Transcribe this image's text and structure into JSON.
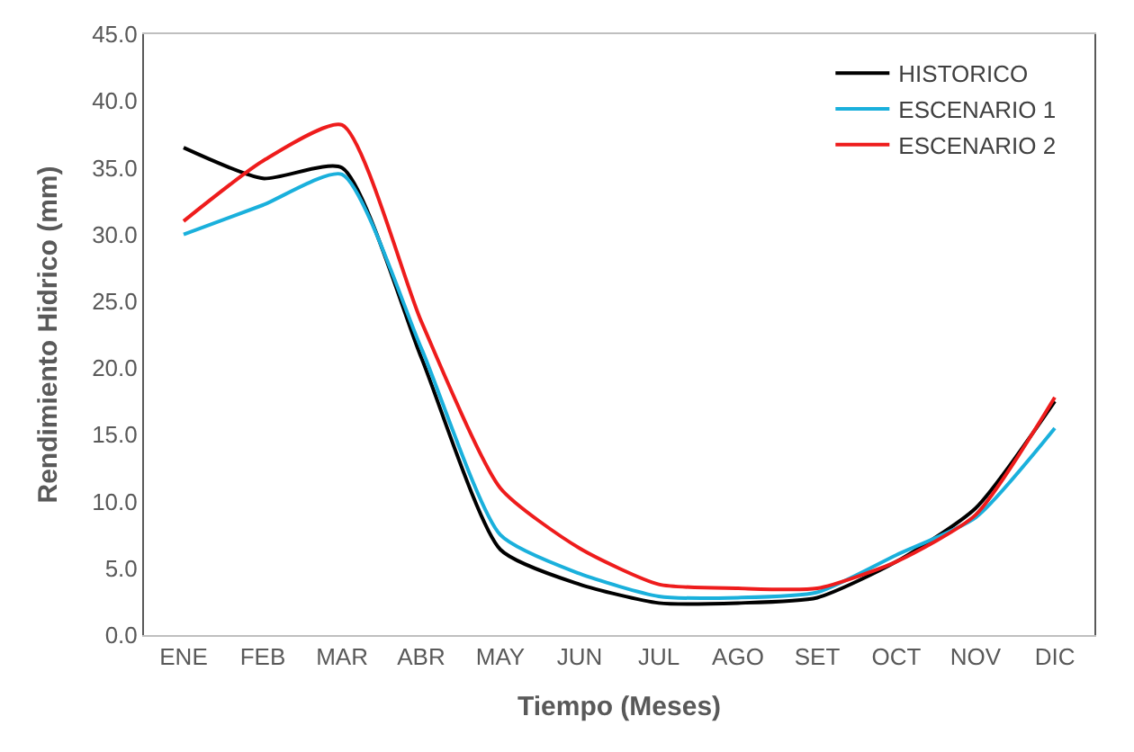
{
  "chart_data": {
    "type": "line",
    "xlabel": "Tiempo (Meses)",
    "ylabel": "Rendimiento Hidrico (mm)",
    "categories": [
      "ENE",
      "FEB",
      "MAR",
      "ABR",
      "MAY",
      "JUN",
      "JUL",
      "AGO",
      "SET",
      "OCT",
      "NOV",
      "DIC"
    ],
    "series": [
      {
        "name": "HISTORICO",
        "color": "#000000",
        "values": [
          36.5,
          34.2,
          35.0,
          20.8,
          6.4,
          3.8,
          2.4,
          2.4,
          2.8,
          5.5,
          9.5,
          17.5
        ]
      },
      {
        "name": "ESCENARIO 1",
        "color": "#1ab0dc",
        "values": [
          30.0,
          32.2,
          34.5,
          21.5,
          7.5,
          4.6,
          2.9,
          2.8,
          3.2,
          6.0,
          8.8,
          15.5
        ]
      },
      {
        "name": "ESCENARIO 2",
        "color": "#ee1c1c",
        "values": [
          31.0,
          35.5,
          38.2,
          23.5,
          11.0,
          6.5,
          3.8,
          3.5,
          3.5,
          5.5,
          9.0,
          17.8
        ]
      }
    ],
    "ylim": [
      0,
      45
    ],
    "yticks": [
      {
        "value": 0,
        "label": "0.0"
      },
      {
        "value": 5,
        "label": "5.0"
      },
      {
        "value": 10,
        "label": "10.0"
      },
      {
        "value": 15,
        "label": "15.0"
      },
      {
        "value": 20,
        "label": "20.0"
      },
      {
        "value": 25,
        "label": "25.0"
      },
      {
        "value": 30,
        "label": "30.0"
      },
      {
        "value": 35,
        "label": "35.0"
      },
      {
        "value": 40,
        "label": "40.0"
      },
      {
        "value": 45,
        "label": "45.0"
      }
    ],
    "legend": "top right",
    "marker": "none",
    "line_style": "solid"
  }
}
